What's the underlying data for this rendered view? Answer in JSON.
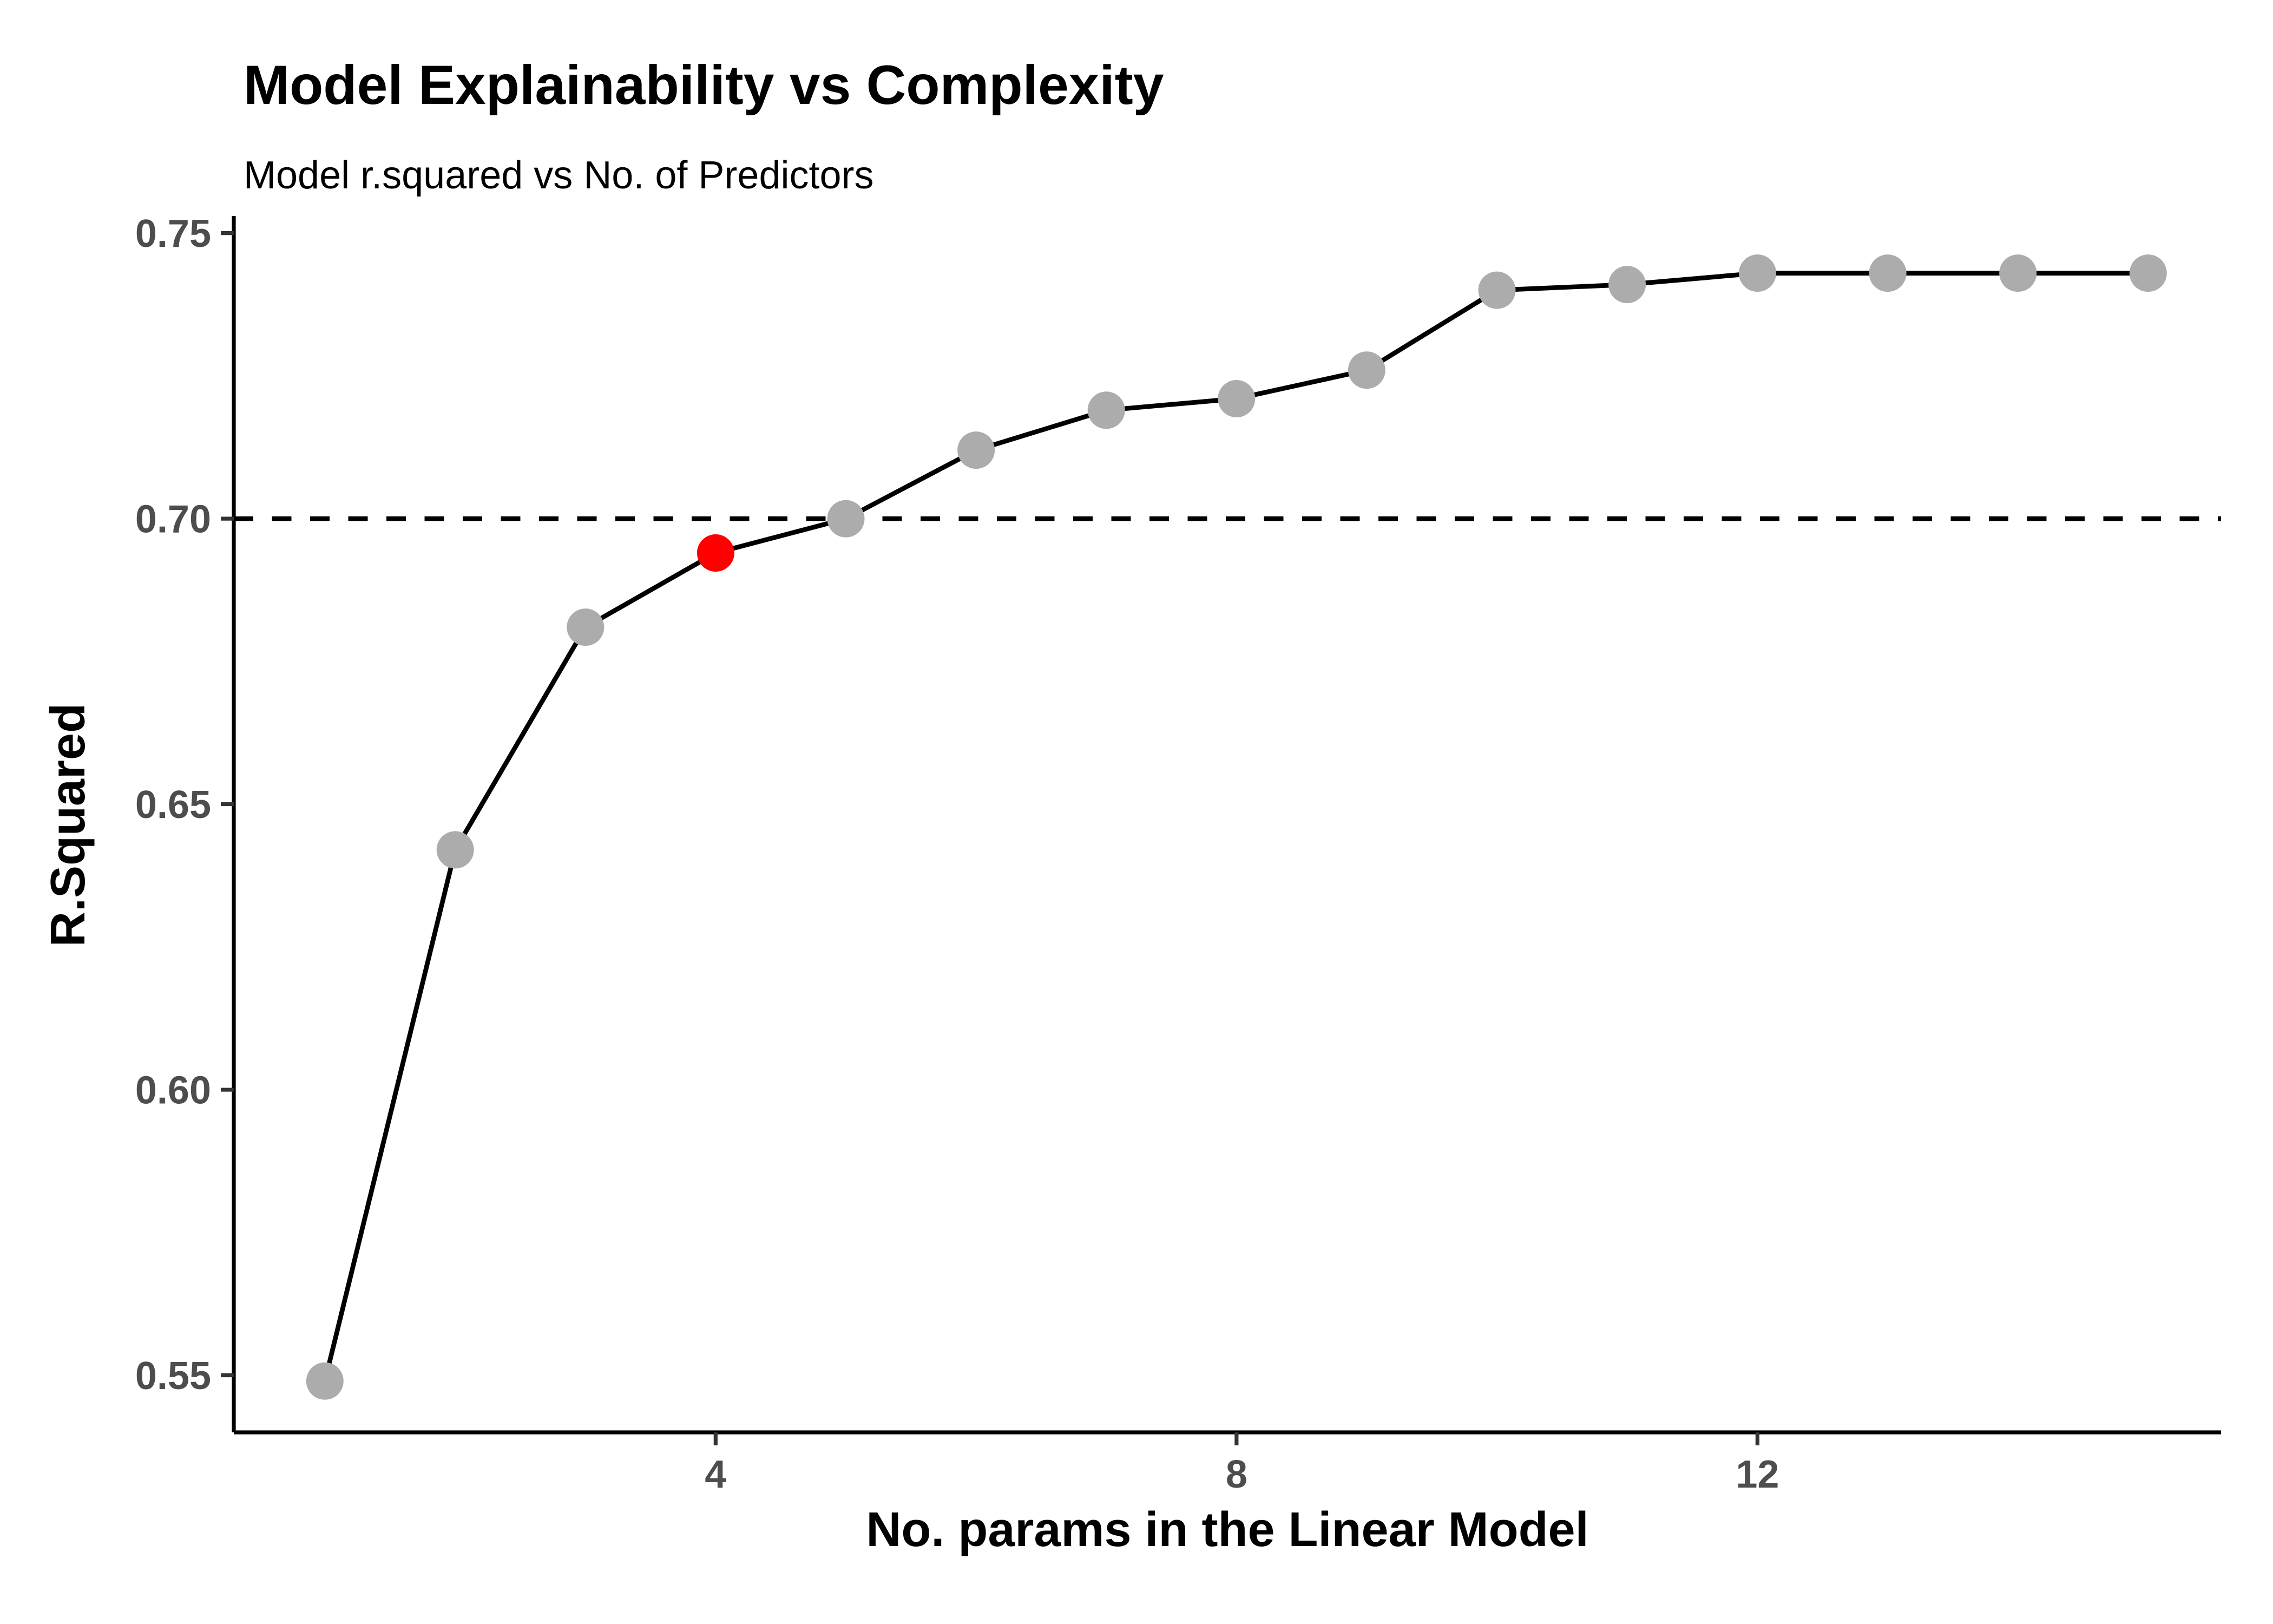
{
  "chart_data": {
    "type": "line",
    "title": "Model Explainability vs Complexity",
    "subtitle": "Model r.squared vs No. of Predictors",
    "xlabel": "No. params in the Linear Model",
    "ylabel": "R.Squared",
    "x": [
      1,
      2,
      3,
      4,
      5,
      6,
      7,
      8,
      9,
      10,
      11,
      12,
      13,
      14,
      15
    ],
    "y": [
      0.549,
      0.642,
      0.681,
      0.694,
      0.7,
      0.712,
      0.719,
      0.721,
      0.726,
      0.74,
      0.741,
      0.743,
      0.743,
      0.743,
      0.743
    ],
    "highlight_x": 4,
    "highlight_y": 0.694,
    "threshold_y": 0.7,
    "x_ticks": [
      4,
      8,
      12
    ],
    "x_tick_labels": [
      "4",
      "8",
      "12"
    ],
    "y_ticks": [
      0.55,
      0.6,
      0.65,
      0.7,
      0.75
    ],
    "y_tick_labels": [
      "0.55",
      "0.60",
      "0.65",
      "0.70",
      "0.75"
    ],
    "xlim": [
      0.3,
      15.56
    ],
    "ylim": [
      0.54,
      0.753
    ],
    "grid": false,
    "legend_position": "none",
    "colors": {
      "point": "#ACACAC",
      "highlight": "#FF0000",
      "line": "#000000",
      "threshold": "#000000",
      "tick_label": "#4D4D4D",
      "text": "#000000",
      "background": "#FFFFFF"
    }
  }
}
